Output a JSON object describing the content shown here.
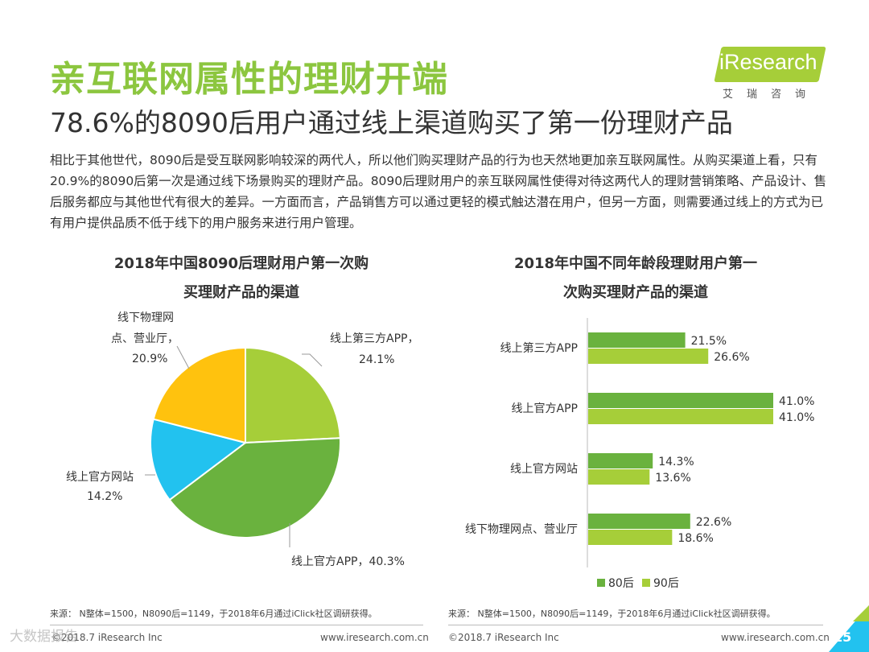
{
  "header": {
    "title": "亲互联网属性的理财开端",
    "subtitle": "78.6%的8090后用户通过线上渠道购买了第一份理财产品",
    "logo_text": "iResearch",
    "logo_cn": "艾瑞咨询",
    "intro": "相比于其他世代，8090后是受互联网影响较深的两代人，所以他们购买理财产品的行为也天然地更加亲互联网属性。从购买渠道上看，只有20.9%的8090后第一次是通过线下场景购买的理财产品。8090后理财用户的亲互联网属性使得对待这两代人的理财营销策略、产品设计、售后服务都应与其他世代有很大的差异。一方面而言，产品销售方可以通过更轻的模式触达潜在用户，但另一方面，则需要通过线上的方式为已有用户提供品质不低于线下的用户服务来进行用户管理。"
  },
  "pie": {
    "title_line1": "2018年中国8090后理财用户第一次购",
    "title_line2": "买理财产品的渠道",
    "labels": {
      "third_party": [
        "线上第三方APP，",
        "24.1%"
      ],
      "official_app": [
        "线上官方APP，40.3%"
      ],
      "official_site": [
        "线上官方网站",
        "14.2%"
      ],
      "offline": [
        "线下物理网",
        "点、营业厅，",
        "20.9%"
      ]
    }
  },
  "bars": {
    "title_line1": "2018年中国不同年龄段理财用户第一",
    "title_line2": "次购买理财产品的渠道",
    "legend": [
      "80后",
      "90后"
    ]
  },
  "chart_data": [
    {
      "type": "pie",
      "title": "2018年中国8090后理财用户第一次购买理财产品的渠道",
      "categories": [
        "线上第三方APP",
        "线上官方APP",
        "线上官方网站",
        "线下物理网点、营业厅"
      ],
      "values": [
        24.1,
        40.3,
        14.2,
        20.9
      ],
      "colors": [
        "#a6ce39",
        "#6ab23e",
        "#22c2ef",
        "#ffc20e"
      ]
    },
    {
      "type": "bar",
      "orientation": "horizontal",
      "title": "2018年中国不同年龄段理财用户第一次购买理财产品的渠道",
      "categories": [
        "线上第三方APP",
        "线上官方APP",
        "线上官方网站",
        "线下物理网点、营业厅"
      ],
      "series": [
        {
          "name": "80后",
          "values": [
            21.5,
            41.0,
            14.3,
            22.6
          ],
          "color": "#6ab23e"
        },
        {
          "name": "90后",
          "values": [
            26.6,
            41.0,
            13.6,
            18.6
          ],
          "color": "#a6ce39"
        }
      ],
      "value_suffix": "%",
      "xlim": [
        0,
        41.0
      ],
      "legend": "bottom"
    }
  ],
  "footer": {
    "source_left": "来源：  N整体=1500，N8090后=1149，于2018年6月通过iClick社区调研获得。",
    "source_right": "来源：  N整体=1500，N8090后=1149，于2018年6月通过iClick社区调研获得。",
    "company_left": "©2018.7 iResearch Inc",
    "website_left": "www.iresearch.com.cn",
    "company_right": "©2018.7 iResearch Inc",
    "website_right": "www.iresearch.com.cn",
    "page_number": "15",
    "watermark": "大数据报告"
  }
}
